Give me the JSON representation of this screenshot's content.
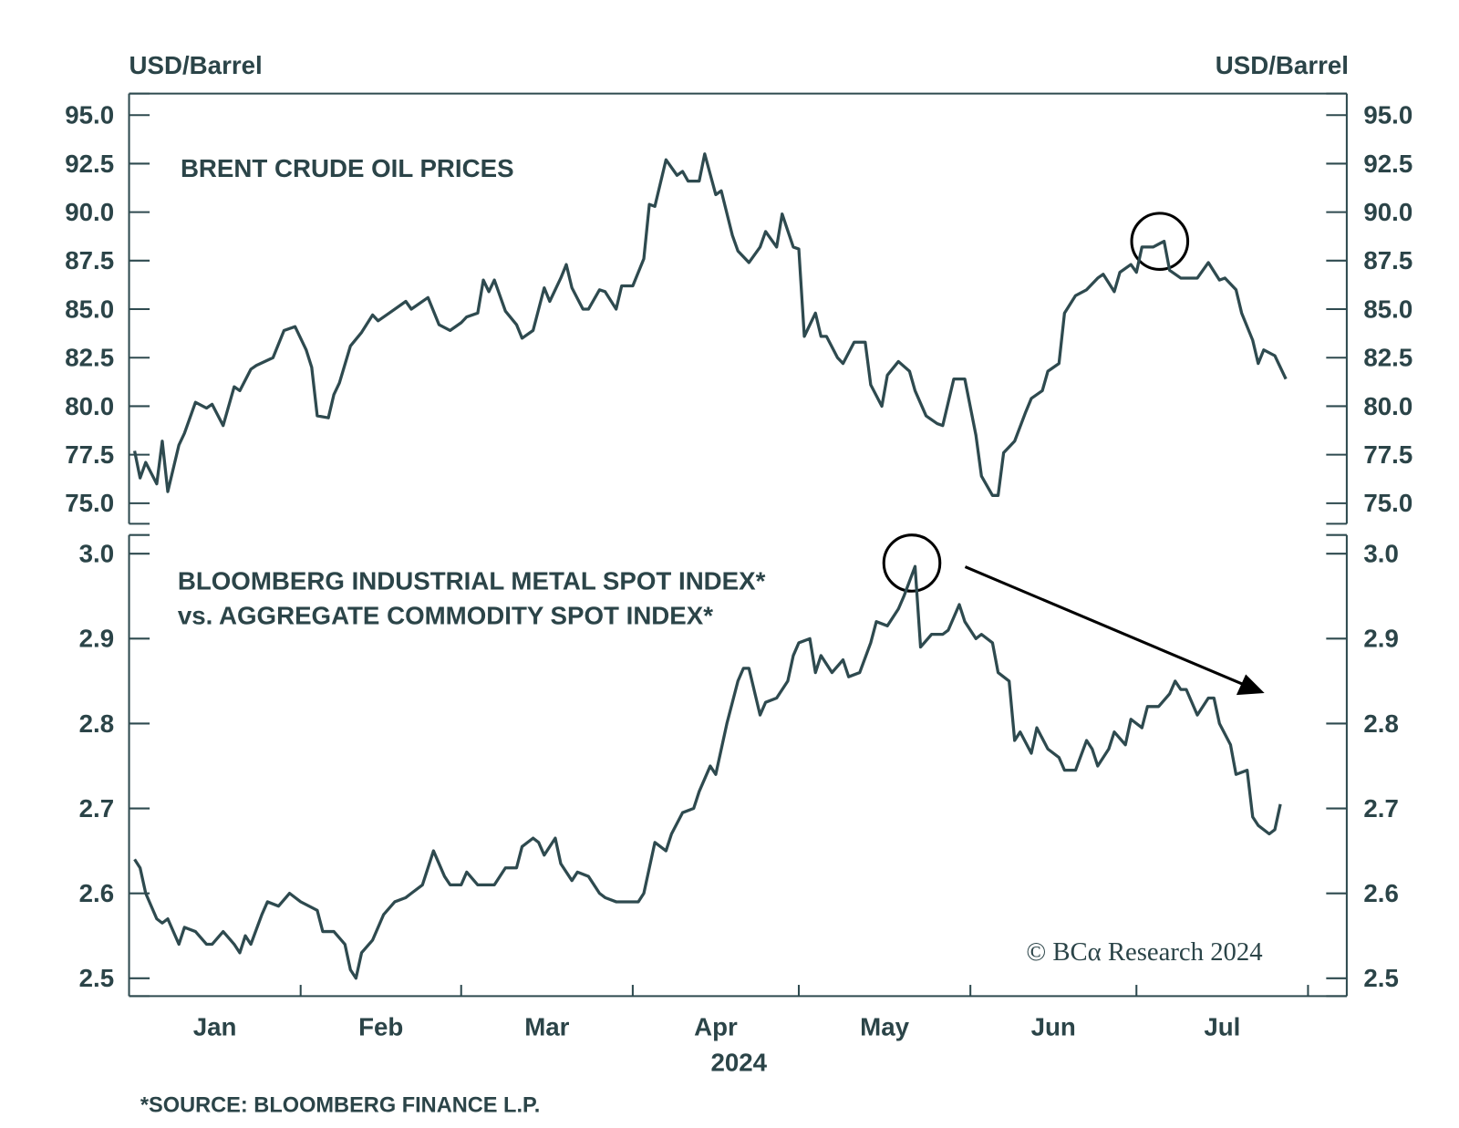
{
  "header": {
    "left_unit": "USD/Barrel",
    "right_unit": "USD/Barrel"
  },
  "chart_data": [
    {
      "type": "line",
      "title": [
        "BRENT CRUDE OIL PRICES"
      ],
      "color": "#2e4a4f",
      "xlim": [
        0,
        220
      ],
      "ylim": [
        73.94,
        96.11
      ],
      "yticks": [
        {
          "value": 75,
          "label": "75.0"
        },
        77.5,
        {
          "value": 80,
          "label": "80.0"
        },
        82.5,
        {
          "value": 85,
          "label": "85.0"
        },
        87.5,
        {
          "value": 90,
          "label": "90.0"
        },
        92.5,
        {
          "value": 95,
          "label": "95.0"
        }
      ],
      "x": [
        1,
        2,
        3,
        5,
        6,
        7,
        9,
        10,
        12,
        14,
        15,
        17,
        19,
        20,
        22,
        23,
        26,
        28,
        30,
        32,
        33,
        34,
        36,
        37,
        38,
        40,
        42,
        44,
        45,
        47,
        50,
        51,
        54,
        56,
        58,
        60,
        61,
        63,
        64,
        65,
        66,
        68,
        70,
        71,
        73,
        75,
        76,
        78,
        79,
        80,
        82,
        83,
        85,
        86,
        88,
        89,
        91,
        93,
        94,
        95,
        97,
        99,
        100,
        101,
        103,
        104,
        106,
        107,
        109,
        110,
        112,
        114,
        115,
        117,
        118,
        120,
        121,
        122,
        124,
        125,
        126,
        128,
        129,
        131,
        133,
        134,
        136,
        137,
        139,
        141,
        142,
        144,
        146,
        147,
        149,
        151,
        153,
        154,
        156,
        157,
        158,
        160,
        162,
        163,
        165,
        166,
        168,
        169,
        171,
        173,
        175,
        176,
        178,
        179,
        181,
        182,
        183,
        185,
        187,
        188,
        190,
        192,
        193,
        195,
        197,
        198,
        200,
        201,
        203,
        204,
        205,
        207,
        209
      ],
      "values": [
        77.7,
        76.3,
        77.1,
        76.0,
        78.2,
        75.6,
        78.0,
        78.6,
        80.2,
        79.9,
        80.1,
        79.0,
        81.0,
        80.8,
        81.9,
        82.1,
        82.5,
        83.9,
        84.1,
        82.9,
        82.0,
        79.5,
        79.4,
        80.6,
        81.2,
        83.1,
        83.8,
        84.7,
        84.4,
        84.8,
        85.4,
        85.0,
        85.6,
        84.2,
        83.9,
        84.3,
        84.6,
        84.8,
        86.5,
        85.9,
        86.5,
        84.9,
        84.2,
        83.5,
        83.9,
        86.1,
        85.4,
        86.6,
        87.3,
        86.1,
        85.0,
        85.0,
        86.0,
        85.9,
        85.0,
        86.2,
        86.2,
        87.6,
        90.4,
        90.3,
        92.7,
        91.9,
        92.1,
        91.6,
        91.6,
        93.0,
        90.9,
        91.1,
        88.8,
        88.0,
        87.4,
        88.2,
        89.0,
        88.2,
        89.9,
        88.2,
        88.1,
        83.6,
        84.8,
        83.6,
        83.6,
        82.5,
        82.2,
        83.3,
        83.3,
        81.1,
        80.0,
        81.6,
        82.3,
        81.8,
        80.8,
        79.5,
        79.1,
        79.0,
        81.4,
        81.4,
        78.5,
        76.4,
        75.4,
        75.4,
        77.6,
        78.2,
        79.7,
        80.4,
        80.8,
        81.8,
        82.2,
        84.8,
        85.7,
        86.0,
        86.6,
        86.8,
        85.9,
        86.9,
        87.3,
        86.9,
        88.2,
        88.2,
        88.5,
        87.0,
        86.6,
        86.6,
        86.6,
        87.4,
        86.5,
        86.6,
        86.0,
        84.8,
        83.4,
        82.2,
        82.9,
        82.6,
        81.4
      ]
    },
    {
      "type": "line",
      "title": [
        "BLOOMBERG INDUSTRIAL METAL SPOT INDEX*",
        "vs. AGGREGATE COMMODITY SPOT INDEX*"
      ],
      "color": "#2e4a4f",
      "xlim": [
        0,
        220
      ],
      "ylim": [
        2.479,
        3.022
      ],
      "yticks": [
        2.5,
        2.6,
        2.7,
        2.8,
        2.9,
        {
          "value": 3,
          "label": "3.0"
        }
      ],
      "xticks": [
        31,
        60,
        91,
        121,
        152,
        182,
        213
      ],
      "categories": [
        "Jan",
        "Feb",
        "Mar",
        "Apr",
        "May",
        "Jun",
        "Jul"
      ],
      "xlabel": "2024",
      "x": [
        1,
        2,
        3,
        5,
        6,
        7,
        9,
        10,
        12,
        14,
        15,
        17,
        19,
        20,
        21,
        22,
        24,
        25,
        27,
        29,
        31,
        34,
        35,
        37,
        39,
        40,
        41,
        42,
        44,
        46,
        48,
        50,
        51,
        53,
        54,
        55,
        57,
        58,
        60,
        61,
        63,
        65,
        66,
        68,
        70,
        71,
        73,
        74,
        75,
        77,
        78,
        80,
        81,
        83,
        85,
        86,
        88,
        90,
        92,
        93,
        95,
        97,
        98,
        100,
        102,
        103,
        105,
        106,
        108,
        110,
        111,
        112,
        114,
        115,
        117,
        119,
        120,
        121,
        123,
        124,
        125,
        127,
        129,
        130,
        132,
        134,
        135,
        137,
        139,
        140,
        142,
        143,
        145,
        147,
        148,
        150,
        151,
        153,
        154,
        156,
        157,
        159,
        160,
        161,
        163,
        164,
        166,
        168,
        169,
        171,
        173,
        174,
        175,
        177,
        178,
        180,
        181,
        183,
        184,
        186,
        188,
        189,
        190,
        191,
        193,
        195,
        196,
        197,
        199,
        200,
        202,
        203,
        204,
        206,
        207,
        208
      ],
      "values": [
        2.64,
        2.63,
        2.6,
        2.57,
        2.565,
        2.57,
        2.54,
        2.56,
        2.555,
        2.54,
        2.54,
        2.555,
        2.54,
        2.53,
        2.55,
        2.54,
        2.575,
        2.59,
        2.585,
        2.6,
        2.59,
        2.58,
        2.555,
        2.555,
        2.54,
        2.51,
        2.5,
        2.53,
        2.545,
        2.575,
        2.59,
        2.595,
        2.6,
        2.61,
        2.63,
        2.65,
        2.62,
        2.61,
        2.61,
        2.625,
        2.61,
        2.61,
        2.61,
        2.63,
        2.63,
        2.655,
        2.665,
        2.66,
        2.645,
        2.665,
        2.635,
        2.615,
        2.625,
        2.62,
        2.6,
        2.595,
        2.59,
        2.59,
        2.59,
        2.6,
        2.66,
        2.65,
        2.67,
        2.695,
        2.7,
        2.72,
        2.75,
        2.74,
        2.8,
        2.85,
        2.865,
        2.865,
        2.81,
        2.825,
        2.83,
        2.85,
        2.88,
        2.895,
        2.9,
        2.86,
        2.88,
        2.86,
        2.875,
        2.855,
        2.86,
        2.895,
        2.92,
        2.915,
        2.935,
        2.95,
        2.985,
        2.89,
        2.905,
        2.905,
        2.91,
        2.94,
        2.92,
        2.9,
        2.905,
        2.895,
        2.86,
        2.85,
        2.78,
        2.79,
        2.765,
        2.795,
        2.77,
        2.76,
        2.745,
        2.745,
        2.78,
        2.77,
        2.75,
        2.77,
        2.79,
        2.775,
        2.805,
        2.795,
        2.82,
        2.82,
        2.835,
        2.85,
        2.84,
        2.84,
        2.81,
        2.83,
        2.83,
        2.8,
        2.775,
        2.74,
        2.745,
        2.69,
        2.68,
        2.67,
        2.675,
        2.705
      ]
    }
  ],
  "credit": "© BCα Research 2024",
  "footnote": "*SOURCE: BLOOMBERG FINANCE L.P."
}
